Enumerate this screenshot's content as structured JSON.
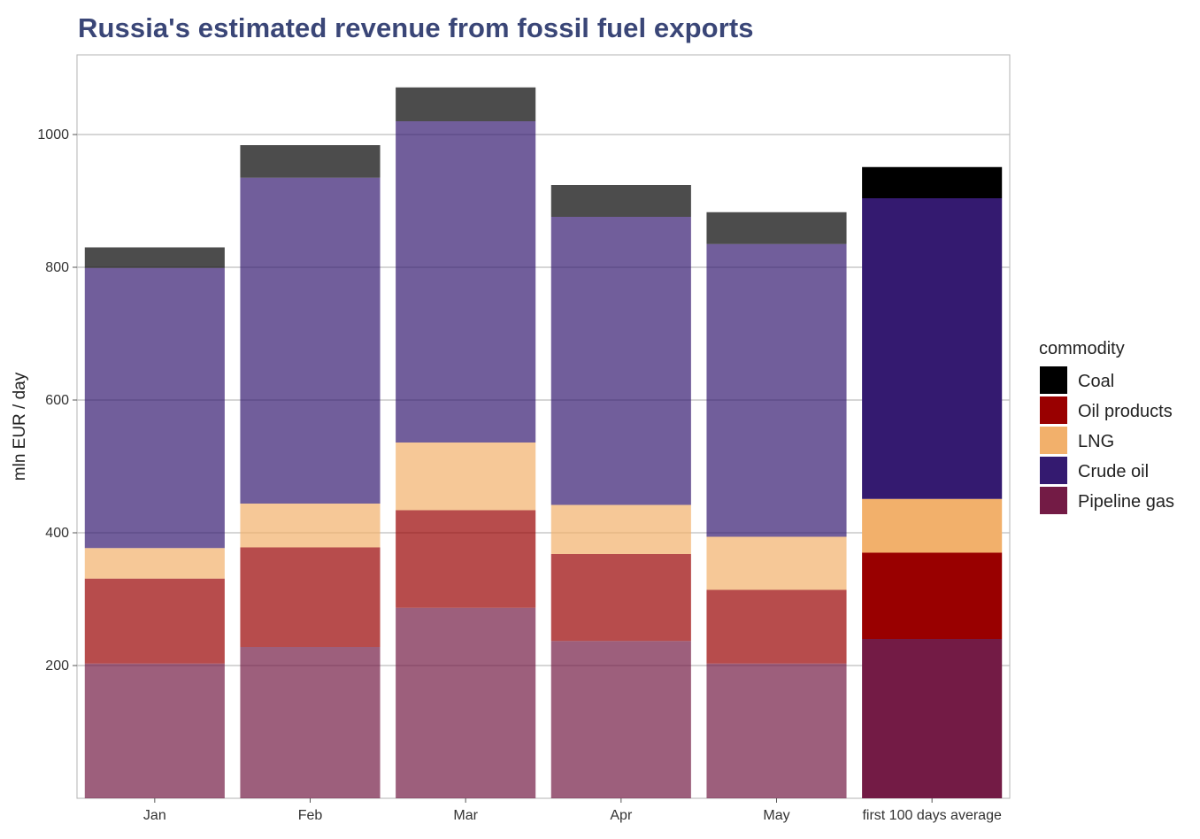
{
  "chart_data": {
    "type": "bar",
    "stacked": true,
    "title": "Russia's estimated revenue from fossil fuel exports",
    "ylabel": "mln EUR / day",
    "xlabel": "",
    "ylim": [
      0,
      1120
    ],
    "yticks": [
      200,
      400,
      600,
      800,
      1000
    ],
    "grid": true,
    "legend_position": "right",
    "legend_title": "commodity",
    "categories": [
      "Jan",
      "Feb",
      "Mar",
      "Apr",
      "May",
      "first 100 days average"
    ],
    "faded_categories": [
      "Jan",
      "Feb",
      "Mar",
      "Apr",
      "May"
    ],
    "series": [
      {
        "name": "Pipeline gas",
        "color": "#731b45",
        "values": [
          203,
          228,
          287,
          237,
          203,
          240
        ]
      },
      {
        "name": "Oil products",
        "color": "#990000",
        "values": [
          128,
          150,
          147,
          131,
          111,
          130
        ]
      },
      {
        "name": "LNG",
        "color": "#f2b06b",
        "values": [
          46,
          66,
          102,
          74,
          80,
          81
        ]
      },
      {
        "name": "Crude oil",
        "color": "#341a70",
        "values": [
          422,
          491,
          484,
          434,
          441,
          453
        ]
      },
      {
        "name": "Coal",
        "color": "#000000",
        "values": [
          31,
          49,
          51,
          48,
          48,
          47
        ]
      }
    ],
    "legend_order": [
      "Coal",
      "Oil products",
      "LNG",
      "Crude oil",
      "Pipeline gas"
    ]
  }
}
